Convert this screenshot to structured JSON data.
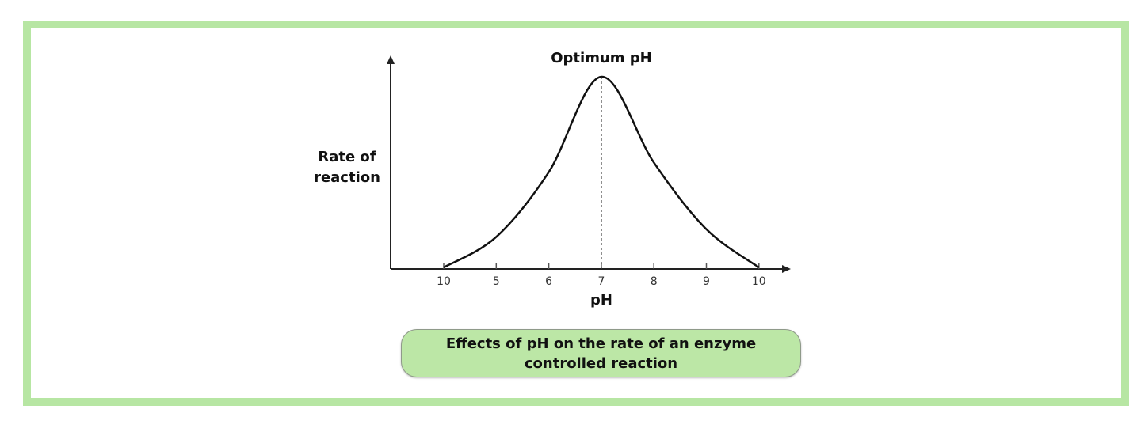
{
  "chart_data": {
    "type": "line",
    "title": "Optimum pH",
    "xlabel": "pH",
    "ylabel": "Rate of reaction",
    "ylabel_lines": [
      "Rate of",
      "reaction"
    ],
    "categories": [
      "10",
      "5",
      "6",
      "7",
      "8",
      "9",
      "10"
    ],
    "series": [
      {
        "values": [
          0,
          0.16,
          0.5,
          1.0,
          0.55,
          0.2,
          0
        ]
      }
    ],
    "optimum_marker": {
      "at": "7",
      "style": "dashed"
    },
    "ylim": [
      0,
      1.1
    ],
    "grid": false,
    "caption_lines": [
      "Effects of pH on the rate of an enzyme",
      "controlled reaction"
    ],
    "colors": {
      "frame": "#b7e6a3",
      "caption_fill": "#bce7a6",
      "line": "#111111"
    }
  }
}
